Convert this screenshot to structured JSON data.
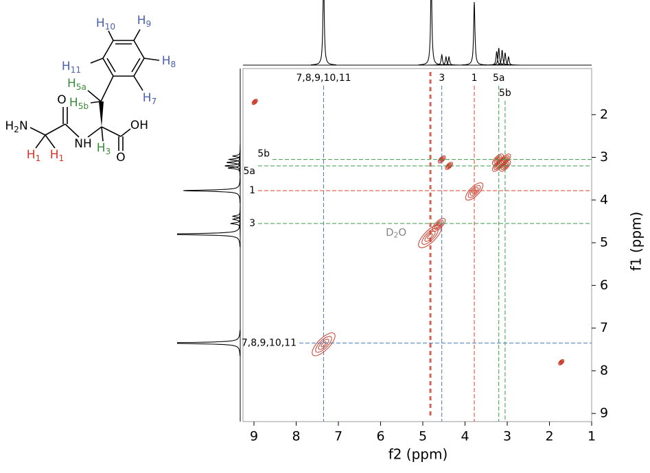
{
  "chart_data": {
    "type": "cosy",
    "x_label": "f2 (ppm)",
    "y_label": "f1 (ppm)",
    "xlim": [
      9.26,
      1
    ],
    "xticks": [
      9,
      8,
      7,
      6,
      5,
      4,
      3,
      2,
      1
    ],
    "ylim": [
      0.92,
      9.19
    ],
    "yticks": [
      2,
      3,
      4,
      5,
      6,
      7,
      8,
      9
    ],
    "contour_color": "#c83a28",
    "assignments": [
      {
        "label": "7,8,9,10,11",
        "ppm": 7.35,
        "vcolor": "#4a78b8",
        "hcolor": "#4a78b8"
      },
      {
        "label": "3",
        "ppm": 4.55,
        "vcolor": "#4a78b8",
        "hcolor": "#3a9a4a"
      },
      {
        "label": "1",
        "ppm": 3.78,
        "vcolor": "#e0402a",
        "hcolor": "#e0402a"
      },
      {
        "label": "5a",
        "ppm": 3.2,
        "vcolor": "#3a9a4a",
        "hcolor": "#3a9a4a"
      },
      {
        "label": "5b",
        "ppm": 3.05,
        "vcolor": "#3a9a4a",
        "hcolor": "#3a9a4a"
      }
    ],
    "solvent": {
      "text": "D",
      "sub": "2",
      "after": "O",
      "ppm": 4.82,
      "color": "#888888"
    },
    "peaks": [
      {
        "f2": 7.35,
        "f1": 7.38,
        "intensity": 1.0
      },
      {
        "f2": 4.83,
        "f1": 4.85,
        "intensity": 1.0
      },
      {
        "f2": 4.62,
        "f1": 4.58,
        "intensity": 0.45
      },
      {
        "f2": 3.78,
        "f1": 3.8,
        "intensity": 0.7
      },
      {
        "f2": 3.22,
        "f1": 3.05,
        "intensity": 0.35
      },
      {
        "f2": 3.05,
        "f1": 3.05,
        "intensity": 0.35
      },
      {
        "f2": 3.22,
        "f1": 3.2,
        "intensity": 0.35
      },
      {
        "f2": 3.05,
        "f1": 3.2,
        "intensity": 0.35
      },
      {
        "f2": 4.55,
        "f1": 3.05,
        "intensity": 0.15
      },
      {
        "f2": 4.38,
        "f1": 3.2,
        "intensity": 0.15
      },
      {
        "f2": 1.72,
        "f1": 7.8,
        "intensity": 0.05
      },
      {
        "f2": 8.98,
        "f1": 1.7,
        "intensity": 0.05
      }
    ],
    "projection": {
      "ppm": [
        7.35,
        4.8,
        4.55,
        4.45,
        4.38,
        3.78,
        3.25,
        3.2,
        3.12,
        3.05,
        2.97
      ],
      "height": [
        1.3,
        1.3,
        0.15,
        0.12,
        0.12,
        0.92,
        0.2,
        0.25,
        0.22,
        0.18,
        0.12
      ]
    }
  },
  "molecule": {
    "labels": [
      {
        "text": "H",
        "sub": "2",
        "after": "N",
        "color": "#000000"
      },
      {
        "text": "O",
        "color": "#000000"
      },
      {
        "text": "NH",
        "color": "#000000"
      },
      {
        "text": "OH",
        "color": "#000000"
      },
      {
        "text": "O",
        "color": "#000000"
      },
      {
        "text": "H",
        "sub": "1",
        "color": "#d8312a"
      },
      {
        "text": "H",
        "sub": "1",
        "color": "#d8312a"
      },
      {
        "text": "H",
        "sub": "3",
        "color": "#3a8a3a"
      },
      {
        "text": "H",
        "sub": "5a",
        "color": "#3a8a3a"
      },
      {
        "text": "H",
        "sub": "5b",
        "color": "#3a8a3a"
      },
      {
        "text": "H",
        "sub": "7",
        "color": "#4a5fb0"
      },
      {
        "text": "H",
        "sub": "8",
        "color": "#4a5fb0"
      },
      {
        "text": "H",
        "sub": "9",
        "color": "#4a5fb0"
      },
      {
        "text": "H",
        "sub": "10",
        "color": "#4a5fb0"
      },
      {
        "text": "H",
        "sub": "11",
        "color": "#4a5fb0"
      }
    ]
  }
}
